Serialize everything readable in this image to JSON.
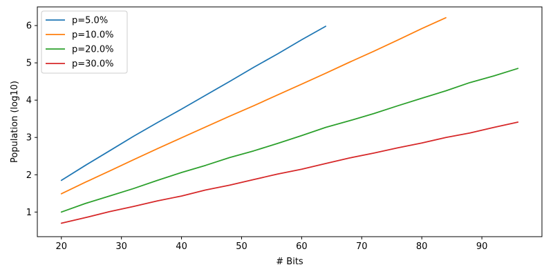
{
  "chart_data": {
    "type": "line",
    "title": "",
    "xlabel": "# Bits",
    "ylabel": "Population (log10)",
    "xlim": [
      16,
      100
    ],
    "ylim": [
      0.34,
      6.5
    ],
    "xticks": [
      20,
      30,
      40,
      50,
      60,
      70,
      80,
      90
    ],
    "yticks": [
      1,
      2,
      3,
      4,
      5,
      6
    ],
    "grid": false,
    "legend_position": "top-left",
    "series": [
      {
        "name": "p=5.0%",
        "color": "#1f77b4",
        "x": [
          20,
          24,
          28,
          32,
          36,
          40,
          44,
          48,
          52,
          56,
          60,
          64
        ],
        "y": [
          1.85,
          2.25,
          2.64,
          3.03,
          3.4,
          3.76,
          4.13,
          4.5,
          4.88,
          5.24,
          5.62,
          5.98
        ]
      },
      {
        "name": "p=10.0%",
        "color": "#ff7f0e",
        "x": [
          20,
          24,
          28,
          32,
          36,
          40,
          44,
          48,
          52,
          56,
          60,
          64,
          68,
          72,
          76,
          80,
          84
        ],
        "y": [
          1.49,
          1.8,
          2.1,
          2.4,
          2.7,
          2.99,
          3.28,
          3.57,
          3.85,
          4.14,
          4.43,
          4.72,
          5.02,
          5.31,
          5.61,
          5.92,
          6.21
        ]
      },
      {
        "name": "p=20.0%",
        "color": "#2ca02c",
        "x": [
          20,
          24,
          28,
          32,
          36,
          40,
          44,
          48,
          52,
          56,
          60,
          64,
          68,
          72,
          76,
          80,
          84,
          88,
          92,
          96
        ],
        "y": [
          1.0,
          1.23,
          1.43,
          1.63,
          1.85,
          2.06,
          2.25,
          2.46,
          2.64,
          2.84,
          3.05,
          3.27,
          3.45,
          3.64,
          3.85,
          4.05,
          4.25,
          4.47,
          4.65,
          4.85
        ]
      },
      {
        "name": "p=30.0%",
        "color": "#d62728",
        "x": [
          20,
          24,
          28,
          32,
          36,
          40,
          44,
          48,
          52,
          56,
          60,
          64,
          68,
          72,
          76,
          80,
          84,
          88,
          92,
          96
        ],
        "y": [
          0.7,
          0.85,
          1.01,
          1.15,
          1.3,
          1.43,
          1.59,
          1.72,
          1.87,
          2.02,
          2.15,
          2.3,
          2.45,
          2.58,
          2.72,
          2.85,
          3.0,
          3.12,
          3.27,
          3.41
        ]
      }
    ]
  }
}
